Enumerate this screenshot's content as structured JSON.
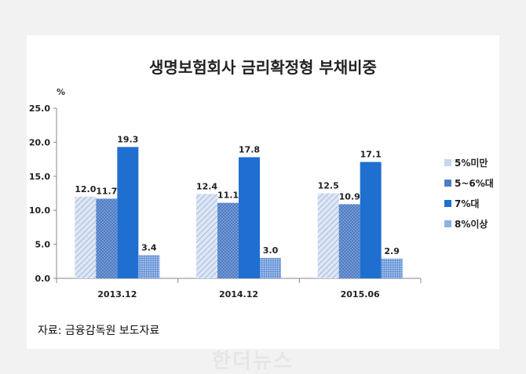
{
  "chart_data": {
    "type": "bar",
    "title": "생명보험회사 금리확정형 부채비중",
    "unit_label": "%",
    "categories": [
      "2013.12",
      "2014.12",
      "2015.06"
    ],
    "series": [
      {
        "name": "5%미만",
        "values": [
          12.0,
          12.4,
          12.5
        ],
        "color": "#c5d3ea",
        "pattern": "light-diagonal"
      },
      {
        "name": "5~6%대",
        "values": [
          11.7,
          11.1,
          10.9
        ],
        "color": "#4a78c2",
        "pattern": "dotted"
      },
      {
        "name": "7%대",
        "values": [
          19.3,
          17.8,
          17.1
        ],
        "color": "#1f6fd0",
        "pattern": "solid"
      },
      {
        "name": "8%이상",
        "values": [
          3.4,
          3.0,
          2.9
        ],
        "color": "#7fa6de",
        "pattern": "checker"
      }
    ],
    "value_labels": [
      [
        "12.0",
        "12.4",
        "12.5"
      ],
      [
        "11.7",
        "11.1",
        "10.9"
      ],
      [
        "19.3",
        "17.8",
        "17.1"
      ],
      [
        "3.4",
        "3.0",
        "2.9"
      ]
    ],
    "y_ticks": [
      "0.0",
      "5.0",
      "10.0",
      "15.0",
      "20.0",
      "25.0"
    ],
    "ylim": [
      0,
      25
    ],
    "legend_position": "right"
  },
  "source": "자료: 금융감독원 보도자료",
  "watermark": "한더뉴스"
}
